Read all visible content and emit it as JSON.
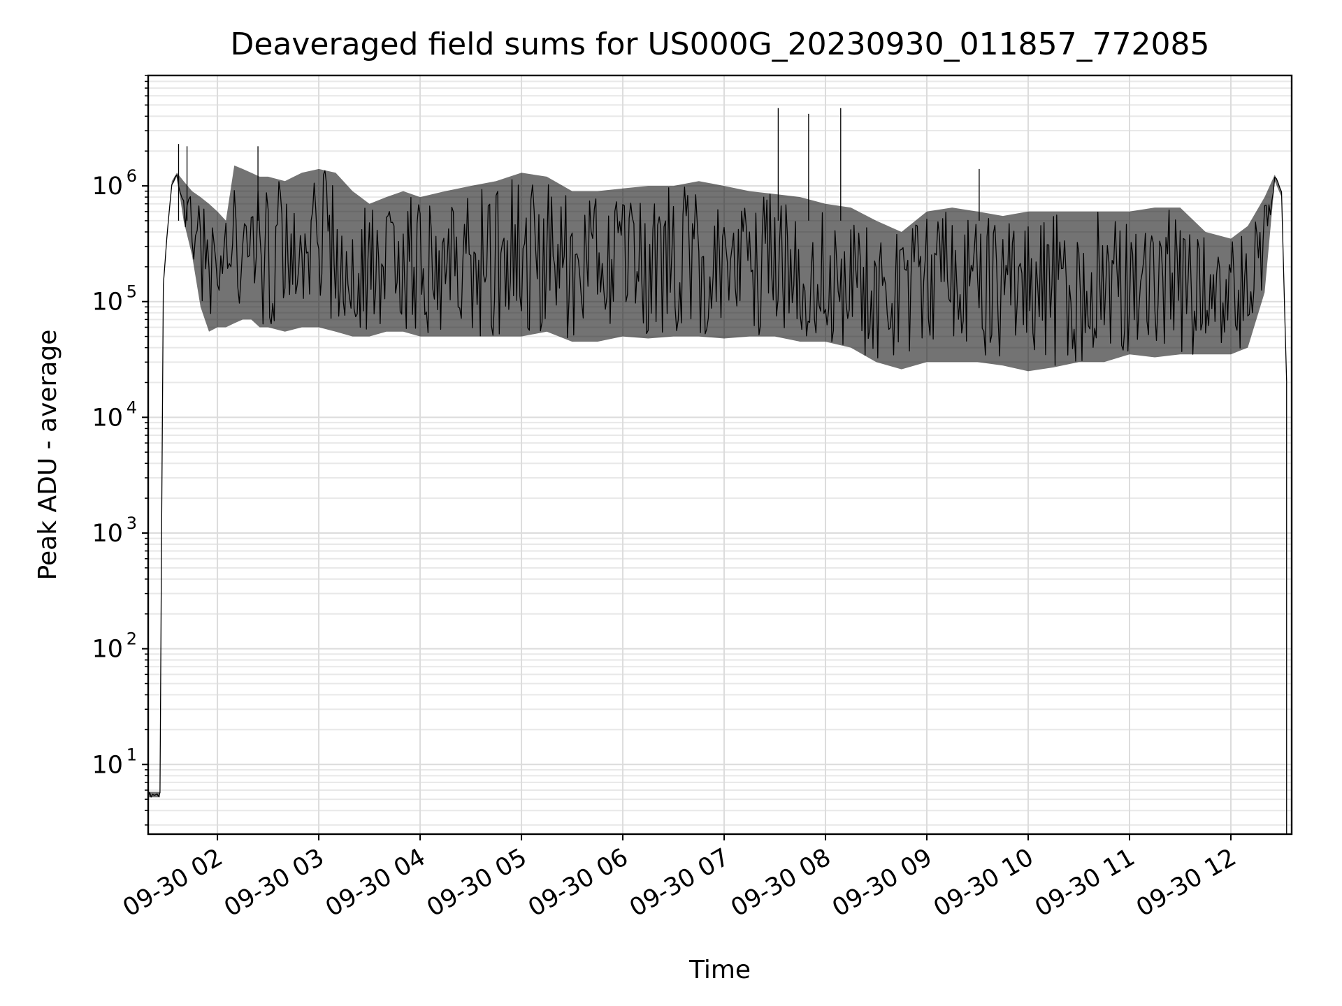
{
  "chart_data": {
    "type": "line",
    "title": "Deaveraged field sums for US000G_20230930_011857_772085",
    "xlabel": "Time",
    "ylabel": "Peak ADU - average",
    "yscale": "log",
    "ylim": [
      2.5,
      9000000
    ],
    "xlim": [
      "2023-09-30 01:19",
      "2023-09-30 12:36"
    ],
    "grid": "on (major and minor)",
    "line_color": "#000000",
    "x_ticks": [
      "2023-09-30 02:00",
      "2023-09-30 03:00",
      "2023-09-30 04:00",
      "2023-09-30 05:00",
      "2023-09-30 06:00",
      "2023-09-30 07:00",
      "2023-09-30 08:00",
      "2023-09-30 09:00",
      "2023-09-30 10:00",
      "2023-09-30 11:00",
      "2023-09-30 12:00"
    ],
    "x_tick_labels": [
      "09-30 02",
      "09-30 03",
      "09-30 04",
      "09-30 05",
      "09-30 06",
      "09-30 07",
      "09-30 08",
      "09-30 09",
      "09-30 10",
      "09-30 11",
      "09-30 12"
    ],
    "y_ticks": [
      10,
      100,
      1000,
      10000,
      100000,
      1000000
    ],
    "y_tick_labels": [
      {
        "base": "10",
        "exp": "1"
      },
      {
        "base": "10",
        "exp": "2"
      },
      {
        "base": "10",
        "exp": "3"
      },
      {
        "base": "10",
        "exp": "4"
      },
      {
        "base": "10",
        "exp": "5"
      },
      {
        "base": "10",
        "exp": "6"
      }
    ],
    "x": [
      "2023-09-30 01:19",
      "2023-09-30 01:26",
      "2023-09-30 01:27",
      "2023-09-30 01:28",
      "2023-09-30 01:30",
      "2023-09-30 01:33",
      "2023-09-30 01:36",
      "2023-09-30 01:40",
      "2023-09-30 01:45",
      "2023-09-30 01:50",
      "2023-09-30 01:55",
      "2023-09-30 02:00",
      "2023-09-30 02:05",
      "2023-09-30 02:10",
      "2023-09-30 02:15",
      "2023-09-30 02:20",
      "2023-09-30 02:25",
      "2023-09-30 02:30",
      "2023-09-30 02:40",
      "2023-09-30 02:50",
      "2023-09-30 03:00",
      "2023-09-30 03:10",
      "2023-09-30 03:20",
      "2023-09-30 03:30",
      "2023-09-30 03:40",
      "2023-09-30 03:50",
      "2023-09-30 04:00",
      "2023-09-30 04:15",
      "2023-09-30 04:30",
      "2023-09-30 04:45",
      "2023-09-30 05:00",
      "2023-09-30 05:15",
      "2023-09-30 05:30",
      "2023-09-30 05:45",
      "2023-09-30 06:00",
      "2023-09-30 06:15",
      "2023-09-30 06:30",
      "2023-09-30 06:45",
      "2023-09-30 07:00",
      "2023-09-30 07:15",
      "2023-09-30 07:30",
      "2023-09-30 07:45",
      "2023-09-30 08:00",
      "2023-09-30 08:15",
      "2023-09-30 08:30",
      "2023-09-30 08:45",
      "2023-09-30 09:00",
      "2023-09-30 09:15",
      "2023-09-30 09:30",
      "2023-09-30 09:45",
      "2023-09-30 10:00",
      "2023-09-30 10:15",
      "2023-09-30 10:30",
      "2023-09-30 10:45",
      "2023-09-30 11:00",
      "2023-09-30 11:15",
      "2023-09-30 11:30",
      "2023-09-30 11:45",
      "2023-09-30 12:00",
      "2023-09-30 12:10",
      "2023-09-30 12:20",
      "2023-09-30 12:26",
      "2023-09-30 12:30",
      "2023-09-30 12:33"
    ],
    "y_upper": [
      5.8,
      5.8,
      1300,
      140000,
      350000,
      1100000,
      1300000,
      1100000,
      900000,
      800000,
      700000,
      600000,
      500000,
      1500000,
      1400000,
      1300000,
      1200000,
      1200000,
      1100000,
      1300000,
      1400000,
      1300000,
      900000,
      700000,
      800000,
      900000,
      800000,
      900000,
      1000000,
      1100000,
      1300000,
      1200000,
      900000,
      900000,
      950000,
      1000000,
      1000000,
      1100000,
      1000000,
      900000,
      850000,
      800000,
      700000,
      650000,
      500000,
      400000,
      600000,
      650000,
      600000,
      550000,
      600000,
      600000,
      600000,
      600000,
      600000,
      650000,
      650000,
      400000,
      350000,
      450000,
      800000,
      1250000,
      900000,
      20000
    ],
    "y_lower": [
      5.2,
      5.2,
      1300,
      140000,
      350000,
      1000000,
      1200000,
      500000,
      250000,
      90000,
      55000,
      60000,
      60000,
      65000,
      70000,
      70000,
      60000,
      60000,
      55000,
      60000,
      60000,
      55000,
      50000,
      50000,
      55000,
      55000,
      50000,
      50000,
      50000,
      50000,
      50000,
      55000,
      45000,
      45000,
      50000,
      48000,
      50000,
      50000,
      48000,
      50000,
      50000,
      45000,
      45000,
      40000,
      30000,
      26000,
      30000,
      30000,
      30000,
      28000,
      25000,
      27000,
      30000,
      30000,
      35000,
      33000,
      35000,
      35000,
      35000,
      40000,
      120000,
      1100000,
      800000,
      20000
    ],
    "spikes": [
      {
        "x": "2023-09-30 01:37",
        "y": 2300000
      },
      {
        "x": "2023-09-30 01:42",
        "y": 2200000
      },
      {
        "x": "2023-09-30 02:24",
        "y": 2200000
      },
      {
        "x": "2023-09-30 07:32",
        "y": 4700000
      },
      {
        "x": "2023-09-30 07:50",
        "y": 4200000
      },
      {
        "x": "2023-09-30 08:09",
        "y": 4700000
      },
      {
        "x": "2023-09-30 09:31",
        "y": 1400000
      }
    ]
  }
}
